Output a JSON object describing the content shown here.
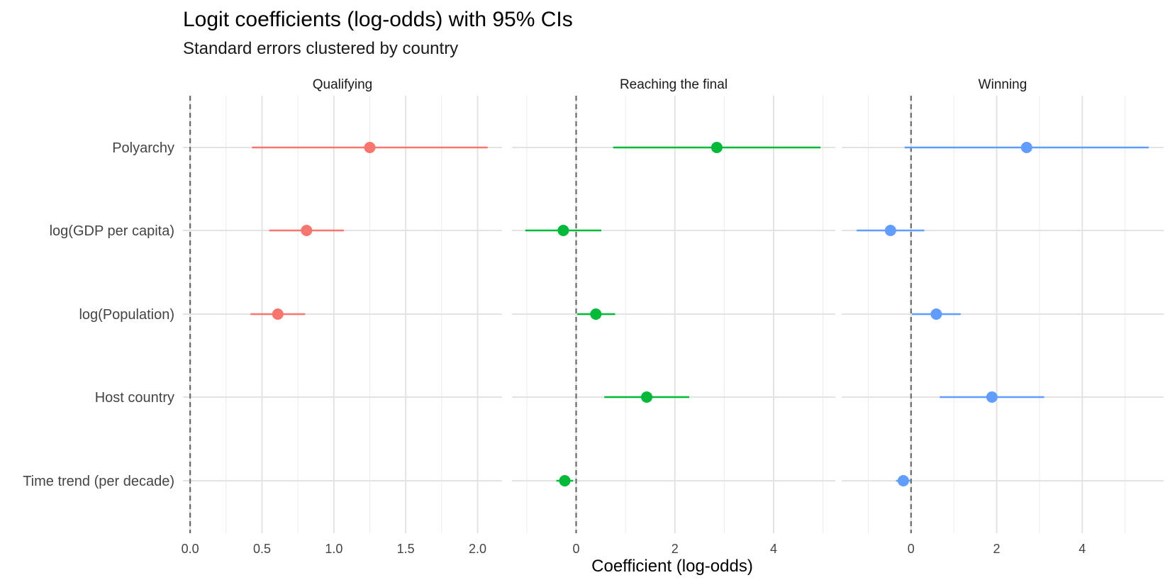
{
  "chart_data": {
    "type": "dot-whisker",
    "title": "Logit coefficients (log-odds) with 95% CIs",
    "subtitle": "Standard errors clustered by country",
    "xlabel": "Coefficient (log-odds)",
    "ylabel": "",
    "terms": [
      "Polyarchy",
      "log(GDP per capita)",
      "log(Population)",
      "Host country",
      "Time trend (per decade)"
    ],
    "reference_line": 0,
    "grid": true,
    "legend": "none",
    "panels": [
      {
        "name": "Qualifying",
        "color": "#F8766D",
        "xlim": [
          -0.05,
          2.17
        ],
        "ticks": [
          0.0,
          0.5,
          1.0,
          1.5,
          2.0
        ],
        "tick_labels": [
          "0.0",
          "0.5",
          "1.0",
          "1.5",
          "2.0"
        ],
        "minor_ticks": [
          0.25,
          0.75,
          1.25,
          1.75
        ],
        "points": [
          {
            "term": "Polyarchy",
            "estimate": 1.25,
            "low": 0.43,
            "high": 2.07
          },
          {
            "term": "log(GDP per capita)",
            "estimate": 0.81,
            "low": 0.55,
            "high": 1.07
          },
          {
            "term": "log(Population)",
            "estimate": 0.61,
            "low": 0.42,
            "high": 0.8
          }
        ]
      },
      {
        "name": "Reaching the final",
        "color": "#00BA38",
        "xlim": [
          -1.3,
          5.25
        ],
        "ticks": [
          0,
          2,
          4
        ],
        "tick_labels": [
          "0",
          "2",
          "4"
        ],
        "minor_ticks": [
          -1,
          1,
          3,
          5
        ],
        "points": [
          {
            "term": "Polyarchy",
            "estimate": 2.85,
            "low": 0.75,
            "high": 4.95
          },
          {
            "term": "log(GDP per capita)",
            "estimate": -0.26,
            "low": -1.03,
            "high": 0.51
          },
          {
            "term": "log(Population)",
            "estimate": 0.4,
            "low": 0.02,
            "high": 0.79
          },
          {
            "term": "Host country",
            "estimate": 1.43,
            "low": 0.57,
            "high": 2.29
          },
          {
            "term": "Time trend (per decade)",
            "estimate": -0.23,
            "low": -0.4,
            "high": -0.06
          }
        ]
      },
      {
        "name": "Winning",
        "color": "#619CFF",
        "xlim": [
          -1.62,
          5.9
        ],
        "ticks": [
          0,
          2,
          4
        ],
        "tick_labels": [
          "0",
          "2",
          "4"
        ],
        "minor_ticks": [
          -1,
          1,
          3,
          5
        ],
        "points": [
          {
            "term": "Polyarchy",
            "estimate": 2.7,
            "low": -0.15,
            "high": 5.55
          },
          {
            "term": "log(GDP per capita)",
            "estimate": -0.48,
            "low": -1.27,
            "high": 0.31
          },
          {
            "term": "log(Population)",
            "estimate": 0.59,
            "low": 0.02,
            "high": 1.16
          },
          {
            "term": "Host country",
            "estimate": 1.89,
            "low": 0.67,
            "high": 3.11
          },
          {
            "term": "Time trend (per decade)",
            "estimate": -0.18,
            "low": -0.35,
            "high": -0.01
          }
        ]
      }
    ]
  }
}
